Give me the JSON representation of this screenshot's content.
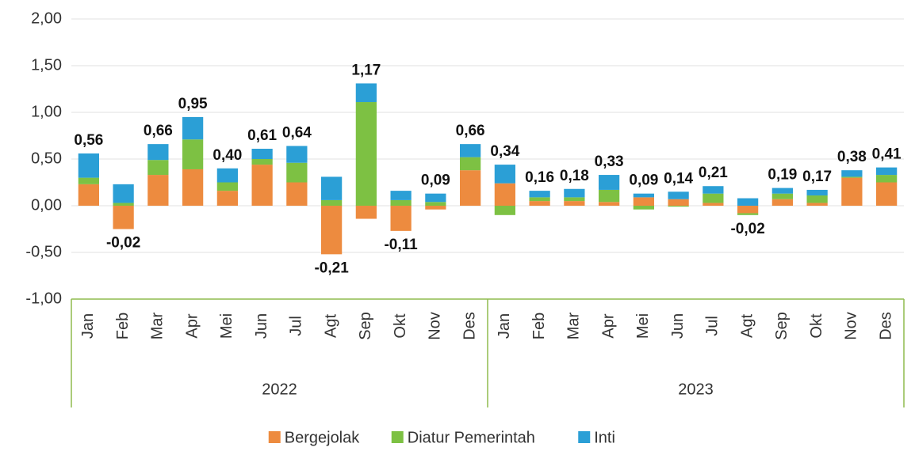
{
  "chart_data": {
    "type": "stacked_bar",
    "categories": [
      "Jan",
      "Feb",
      "Mar",
      "Apr",
      "Mei",
      "Jun",
      "Jul",
      "Agt",
      "Sep",
      "Okt",
      "Nov",
      "Des",
      "Jan",
      "Feb",
      "Mar",
      "Apr",
      "Mei",
      "Jun",
      "Jul",
      "Agt",
      "Sep",
      "Okt",
      "Nov",
      "Des"
    ],
    "groups": [
      {
        "label": "2022",
        "size": 12
      },
      {
        "label": "2023",
        "size": 12
      }
    ],
    "series": [
      {
        "name": "Bergejolak",
        "color": "#ed8b3f",
        "values": [
          0.23,
          -0.25,
          0.33,
          0.39,
          0.16,
          0.44,
          0.25,
          -0.52,
          -0.14,
          -0.27,
          -0.04,
          0.38,
          0.24,
          0.05,
          0.05,
          0.04,
          0.09,
          0.07,
          0.03,
          -0.08,
          0.07,
          0.03,
          0.3,
          0.25
        ]
      },
      {
        "name": "Diatur Pemerintah",
        "color": "#7dc143",
        "values": [
          0.07,
          0.03,
          0.16,
          0.32,
          0.09,
          0.06,
          0.21,
          0.06,
          1.11,
          0.06,
          0.04,
          0.14,
          -0.1,
          0.04,
          0.04,
          0.13,
          -0.04,
          -0.01,
          0.1,
          -0.02,
          0.06,
          0.08,
          0.01,
          0.08
        ]
      },
      {
        "name": "Inti",
        "color": "#2b9fd6",
        "values": [
          0.26,
          0.2,
          0.17,
          0.24,
          0.15,
          0.11,
          0.18,
          0.25,
          0.2,
          0.1,
          0.09,
          0.14,
          0.2,
          0.07,
          0.09,
          0.16,
          0.04,
          0.08,
          0.08,
          0.08,
          0.06,
          0.06,
          0.07,
          0.08
        ]
      }
    ],
    "totals": {
      "values": [
        0.56,
        -0.02,
        0.66,
        0.95,
        0.4,
        0.61,
        0.64,
        -0.21,
        1.17,
        -0.11,
        0.09,
        0.66,
        0.34,
        0.16,
        0.18,
        0.33,
        0.09,
        0.14,
        0.21,
        -0.02,
        0.19,
        0.17,
        0.38,
        0.41
      ],
      "value_labels": [
        "0,56",
        "-0,02",
        "0,66",
        "0,95",
        "0,40",
        "0,61",
        "0,64",
        "-0,21",
        "1,17",
        "-0,11",
        "0,09",
        "0,66",
        "0,34",
        "0,16",
        "0,18",
        "0,33",
        "0,09",
        "0,14",
        "0,21",
        "-0,02",
        "0,19",
        "0,17",
        "0,38",
        "0,41"
      ]
    },
    "ylim": [
      -1,
      2
    ],
    "yticks": [
      {
        "value": -1,
        "label": "-1,00"
      },
      {
        "value": -0.5,
        "label": "-0,50"
      },
      {
        "value": 0,
        "label": "0,00"
      },
      {
        "value": 0.5,
        "label": "0,50"
      },
      {
        "value": 1,
        "label": "1,00"
      },
      {
        "value": 1.5,
        "label": "1,50"
      },
      {
        "value": 2,
        "label": "2,00"
      }
    ],
    "grid": true,
    "legend": "bottom"
  }
}
